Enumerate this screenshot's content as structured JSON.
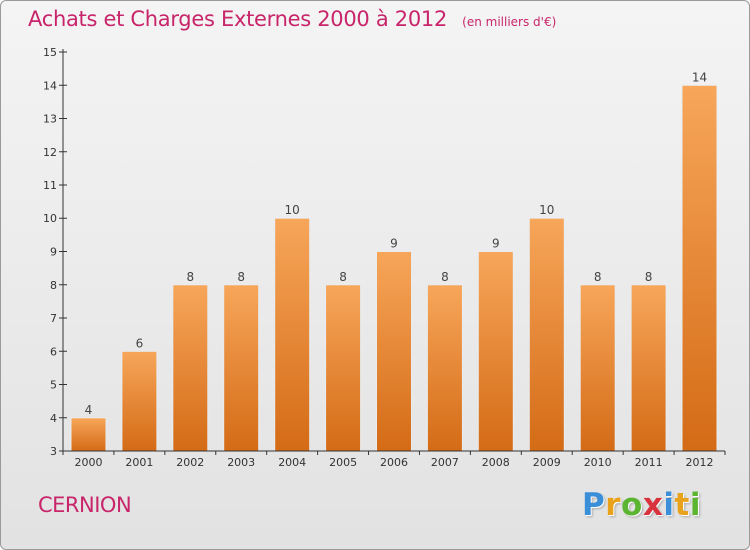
{
  "header": {
    "title": "Achats et Charges Externes 2000 à 2012",
    "unit": "(en milliers d'€)"
  },
  "footer": {
    "commune": "CERNION",
    "brand_letters": [
      "P",
      "r",
      "o",
      "x",
      "i",
      "t",
      "i"
    ],
    "brand_colors": [
      "#3a8fd8",
      "#e8a21c",
      "#5bb531",
      "#d8323c",
      "#3a8fd8",
      "#e8a21c",
      "#5bb531"
    ]
  },
  "colors": {
    "title": "#c8256a",
    "bar_light": "#f7a65a",
    "bar_dark": "#d46b16",
    "axis": "#333333"
  },
  "chart_data": {
    "type": "bar",
    "title": "Achats et Charges Externes 2000 à 2012",
    "subtitle": "(en milliers d'€)",
    "xlabel": "",
    "ylabel": "",
    "categories": [
      "2000",
      "2001",
      "2002",
      "2003",
      "2004",
      "2005",
      "2006",
      "2007",
      "2008",
      "2009",
      "2010",
      "2011",
      "2012"
    ],
    "values": [
      4,
      6,
      8,
      8,
      10,
      8,
      9,
      8,
      9,
      10,
      8,
      8,
      14
    ],
    "ylim": [
      3,
      15
    ],
    "yticks": [
      3,
      4,
      5,
      6,
      7,
      8,
      9,
      10,
      11,
      12,
      13,
      14,
      15
    ],
    "grid": false,
    "legend": "none"
  }
}
